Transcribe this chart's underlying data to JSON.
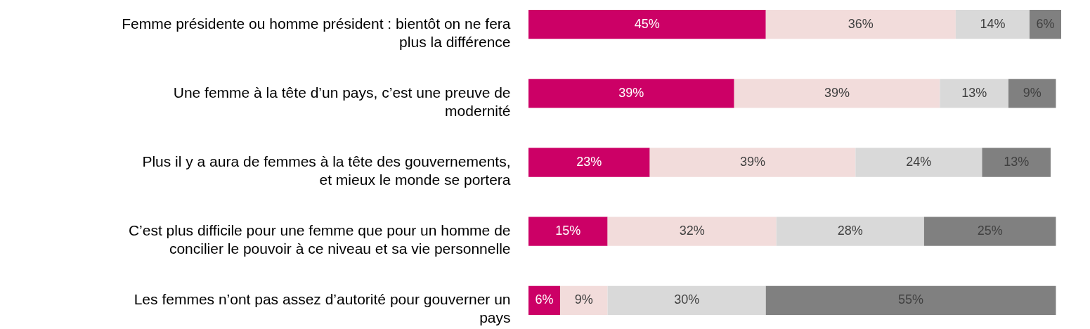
{
  "chart_data": {
    "type": "bar",
    "orientation": "horizontal",
    "stacked": true,
    "categories": [
      "Femme présidente ou homme président : bientôt on ne fera plus la différence",
      "Une femme à la tête d’un pays, c’est une preuve de modernité",
      "Plus il y a aura de femmes à la tête des gouvernements, et mieux le monde se portera",
      "C’est plus difficile pour une femme que pour un homme de concilier le pouvoir à ce niveau et sa vie personnelle",
      "Les femmes n’ont pas assez d’autorité pour gouverner un pays"
    ],
    "series": [
      {
        "color": "#cc0066",
        "values": [
          45,
          39,
          23,
          15,
          6
        ],
        "value_labels": [
          "45%",
          "39%",
          "23%",
          "15%",
          "6%"
        ]
      },
      {
        "color": "#f2dcdb",
        "values": [
          36,
          39,
          39,
          32,
          9
        ],
        "value_labels": [
          "36%",
          "39%",
          "39%",
          "32%",
          "9%"
        ]
      },
      {
        "color": "#d9d9d9",
        "values": [
          14,
          13,
          24,
          28,
          30
        ],
        "value_labels": [
          "14%",
          "13%",
          "24%",
          "28%",
          "30%"
        ]
      },
      {
        "color": "#808080",
        "values": [
          6,
          9,
          13,
          25,
          55
        ],
        "value_labels": [
          "6%",
          "9%",
          "13%",
          "25%",
          "55%"
        ]
      }
    ]
  }
}
